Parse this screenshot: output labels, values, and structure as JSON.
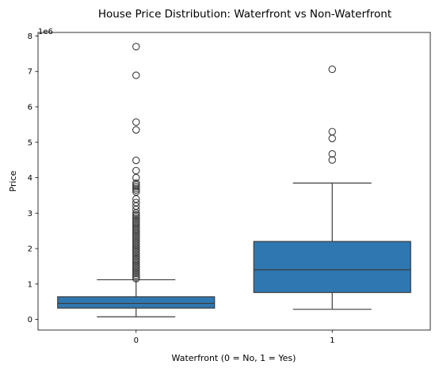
{
  "chart_data": {
    "type": "box",
    "title": "House Price Distribution: Waterfront vs Non-Waterfront",
    "xlabel": "Waterfront (0 = No, 1 = Yes)",
    "ylabel": "Price",
    "y_offset_text": "1e6",
    "ylim": [
      -300000,
      8100000
    ],
    "y_ticks": [
      0,
      1000000,
      2000000,
      3000000,
      4000000,
      5000000,
      6000000,
      7000000,
      8000000
    ],
    "y_tick_labels": [
      "0",
      "1",
      "2",
      "3",
      "4",
      "5",
      "6",
      "7",
      "8"
    ],
    "box_color": "#2f77b1",
    "categories": [
      "0",
      "1"
    ],
    "boxes": [
      {
        "category": "0",
        "whisker_low": 75000,
        "q1": 320000,
        "median": 450000,
        "q3": 640000,
        "whisker_high": 1120000,
        "outliers": [
          7700000,
          6890000,
          5570000,
          5350000,
          4490000,
          4200000,
          4000000,
          3850000,
          3800000,
          3750000,
          3700000,
          3650000,
          3600000,
          3400000,
          3300000,
          3200000,
          3100000,
          3000000,
          2950000,
          2900000,
          2850000,
          2800000,
          2750000,
          2700000,
          2650000,
          2600000,
          2550000,
          2500000,
          2450000,
          2400000,
          2350000,
          2300000,
          2250000,
          2200000,
          2150000,
          2100000,
          2050000,
          2000000,
          1950000,
          1900000,
          1850000,
          1800000,
          1750000,
          1700000,
          1650000,
          1600000,
          1550000,
          1500000,
          1450000,
          1400000,
          1350000,
          1300000,
          1250000,
          1200000,
          1150000
        ]
      },
      {
        "category": "1",
        "whisker_low": 285000,
        "q1": 760000,
        "median": 1400000,
        "q3": 2200000,
        "whisker_high": 3850000,
        "outliers": [
          7060000,
          5300000,
          5110000,
          4670000,
          4500000
        ]
      }
    ]
  }
}
